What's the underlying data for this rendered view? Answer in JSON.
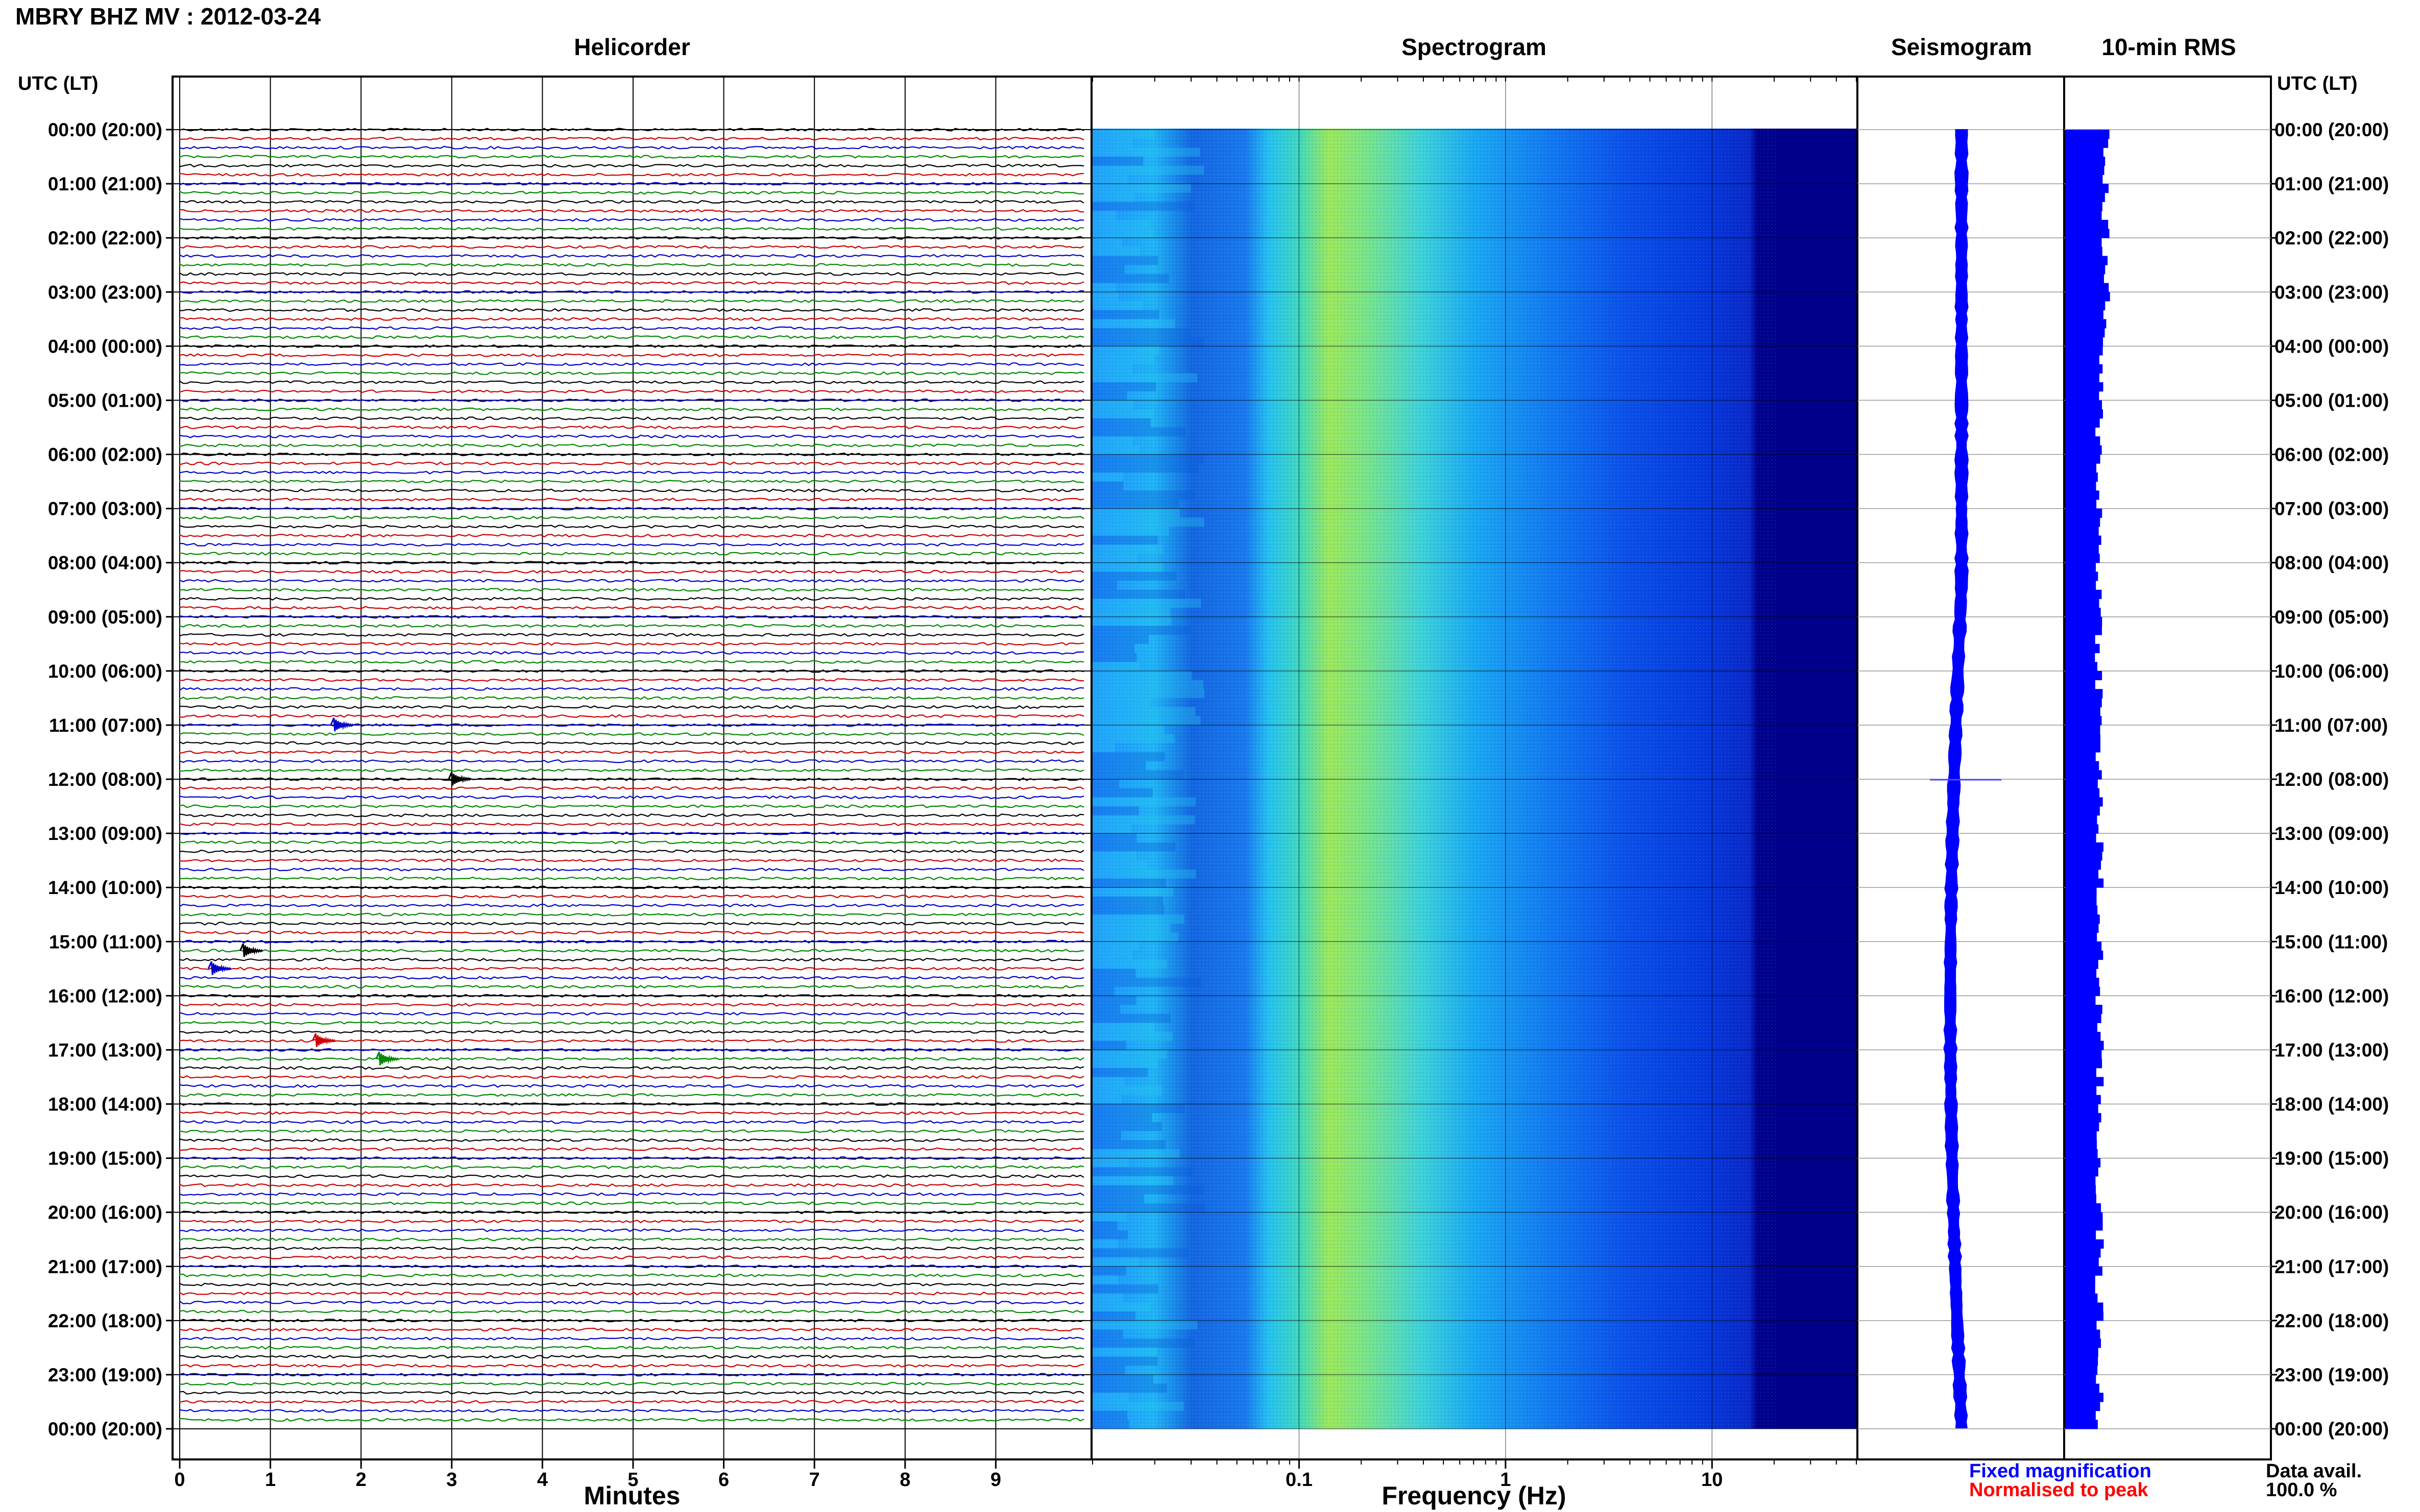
{
  "header": {
    "title": "MBRY BHZ MV : 2012-03-24"
  },
  "legend": {
    "fixed": "Fixed magnification",
    "normalised": "Normalised to peak",
    "fixed_color": "#0000ff",
    "normalised_color": "#ff0000"
  },
  "availability": {
    "label": "Data avail.",
    "value": "100.0 %"
  },
  "chart_data": [
    {
      "type": "line",
      "title": "Helicorder",
      "xlabel": "Minutes",
      "ylabel": "UTC (LT)",
      "x_ticks": [
        "0",
        "1",
        "2",
        "3",
        "4",
        "5",
        "6",
        "7",
        "8",
        "9"
      ],
      "xlim": [
        0,
        10
      ],
      "y_ticks": [
        "00:00 (20:00)",
        "01:00 (21:00)",
        "02:00 (22:00)",
        "03:00 (23:00)",
        "04:00 (00:00)",
        "05:00 (01:00)",
        "06:00 (02:00)",
        "07:00 (03:00)",
        "08:00 (04:00)",
        "09:00 (05:00)",
        "10:00 (06:00)",
        "11:00 (07:00)",
        "12:00 (08:00)",
        "13:00 (09:00)",
        "14:00 (10:00)",
        "15:00 (11:00)",
        "16:00 (12:00)",
        "17:00 (13:00)",
        "18:00 (14:00)",
        "19:00 (15:00)",
        "20:00 (16:00)",
        "21:00 (17:00)",
        "22:00 (18:00)",
        "23:00 (19:00)",
        "00:00 (20:00)"
      ],
      "trace_colors": [
        "#000000",
        "#cc0000",
        "#0000cc",
        "#008800"
      ],
      "rows_per_hour": 6,
      "events": [
        {
          "hour": 12.0,
          "minute": 3.0,
          "color": "#000000"
        },
        {
          "hour": 15.17,
          "minute": 0.7,
          "color": "#000000"
        },
        {
          "hour": 15.5,
          "minute": 0.35,
          "color": "#0000cc"
        },
        {
          "hour": 16.83,
          "minute": 1.5,
          "color": "#cc0000"
        },
        {
          "hour": 17.17,
          "minute": 2.2,
          "color": "#008800"
        },
        {
          "hour": 11.0,
          "minute": 1.7,
          "color": "#0000cc"
        }
      ],
      "grid": true
    },
    {
      "type": "heatmap",
      "title": "Spectrogram",
      "xlabel": "Frequency (Hz)",
      "x_scale": "log",
      "xlim": [
        0.01,
        50
      ],
      "x_ticks": [
        "0.1",
        "1",
        "10"
      ],
      "colormap": [
        "#00008b",
        "#0000ff",
        "#1e90ff",
        "#00bfff",
        "#40e0d0",
        "#adff2f"
      ]
    },
    {
      "type": "line",
      "title": "Seismogram",
      "grid": true
    },
    {
      "type": "bar",
      "title": "10-min RMS",
      "bar_color": "#0000ff",
      "grid": true
    }
  ]
}
